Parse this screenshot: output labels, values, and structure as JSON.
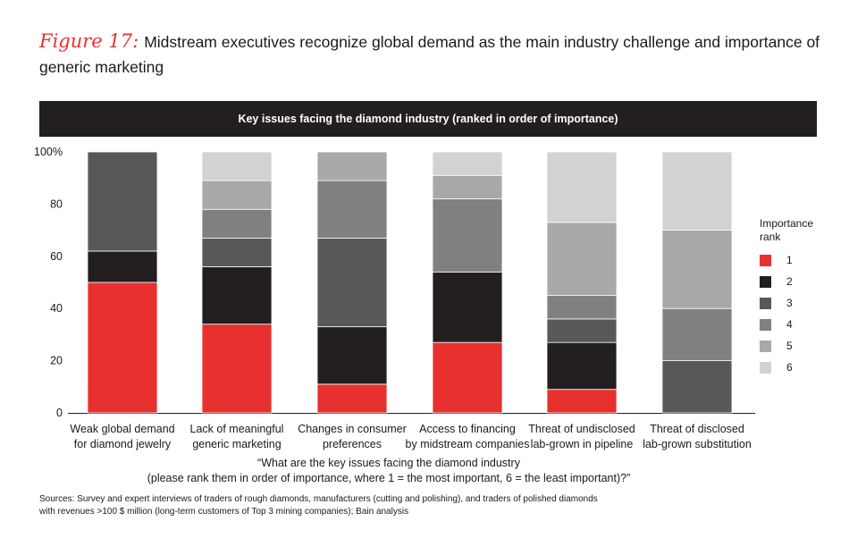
{
  "figure_label": "Figure 17:",
  "title": "Midstream executives recognize global demand as the main industry challenge and importance of generic marketing",
  "chart_data": {
    "type": "bar",
    "stacked": true,
    "title": "Key issues facing the diamond industry (ranked in order of importance)",
    "categories": [
      [
        "Weak global demand",
        "for diamond jewelry"
      ],
      [
        "Lack of meaningful",
        "generic marketing"
      ],
      [
        "Changes in consumer",
        "preferences"
      ],
      [
        "Access to financing",
        "by midstream companies"
      ],
      [
        "Threat of undisclosed",
        "lab-grown in pipeline"
      ],
      [
        "Threat of disclosed",
        "lab-grown substitution"
      ]
    ],
    "series": [
      {
        "name": "1",
        "color": "#e8302e",
        "values": [
          50,
          34,
          11,
          27,
          9,
          0
        ]
      },
      {
        "name": "2",
        "color": "#231f20",
        "values": [
          12,
          22,
          22,
          27,
          18,
          0
        ]
      },
      {
        "name": "3",
        "color": "#58585a",
        "values": [
          38,
          11,
          34,
          0,
          9,
          20
        ]
      },
      {
        "name": "4",
        "color": "#808083",
        "values": [
          0,
          11,
          22,
          28,
          9,
          20
        ]
      },
      {
        "name": "5",
        "color": "#a7a8aa",
        "values": [
          0,
          11,
          11,
          9,
          28,
          30
        ]
      },
      {
        "name": "6",
        "color": "#d1d2d4",
        "values": [
          0,
          11,
          0,
          9,
          27,
          30
        ]
      }
    ],
    "yticks": [
      "0",
      "20",
      "40",
      "60",
      "80",
      "100%"
    ],
    "ylim": [
      0,
      100
    ],
    "legend_title": [
      "Importance",
      "rank"
    ],
    "legend_position": "right",
    "xlabel": [
      "“What are the key issues facing the diamond industry",
      "(please rank them in order of importance, where 1 = the most important, 6 = the least important)?”"
    ]
  },
  "sources": [
    "Sources: Survey and expert interviews of traders of rough diamonds, manufacturers (cutting and polishing), and traders of polished diamonds",
    "with revenues >100 $ million (long-term customers of Top 3 mining companies); Bain analysis"
  ]
}
